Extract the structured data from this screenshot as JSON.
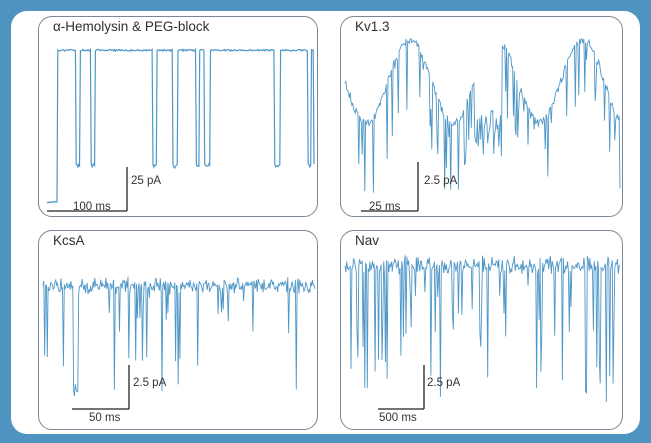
{
  "chart_data": [
    {
      "type": "line",
      "title": "α-Hemolysin & PEG-block",
      "scalebar_time": "100 ms",
      "scalebar_current": "25 pA",
      "trace_color": "#4f97c7",
      "pattern": "block"
    },
    {
      "type": "line",
      "title": "Kv1.3",
      "scalebar_time": "25 ms",
      "scalebar_current": "2.5 pA",
      "trace_color": "#4f97c7",
      "pattern": "kv"
    },
    {
      "type": "line",
      "title": "KcsA",
      "scalebar_time": "50 ms",
      "scalebar_current": "2.5 pA",
      "trace_color": "#4f97c7",
      "pattern": "kcsa"
    },
    {
      "type": "line",
      "title": "Nav",
      "scalebar_time": "500 ms",
      "scalebar_current": "2.5 pA",
      "trace_color": "#4f97c7",
      "pattern": "nav"
    }
  ],
  "colors": {
    "frame_background": "#4f94c0",
    "panel_border": "#7b8794",
    "scalebar": "#222222"
  }
}
